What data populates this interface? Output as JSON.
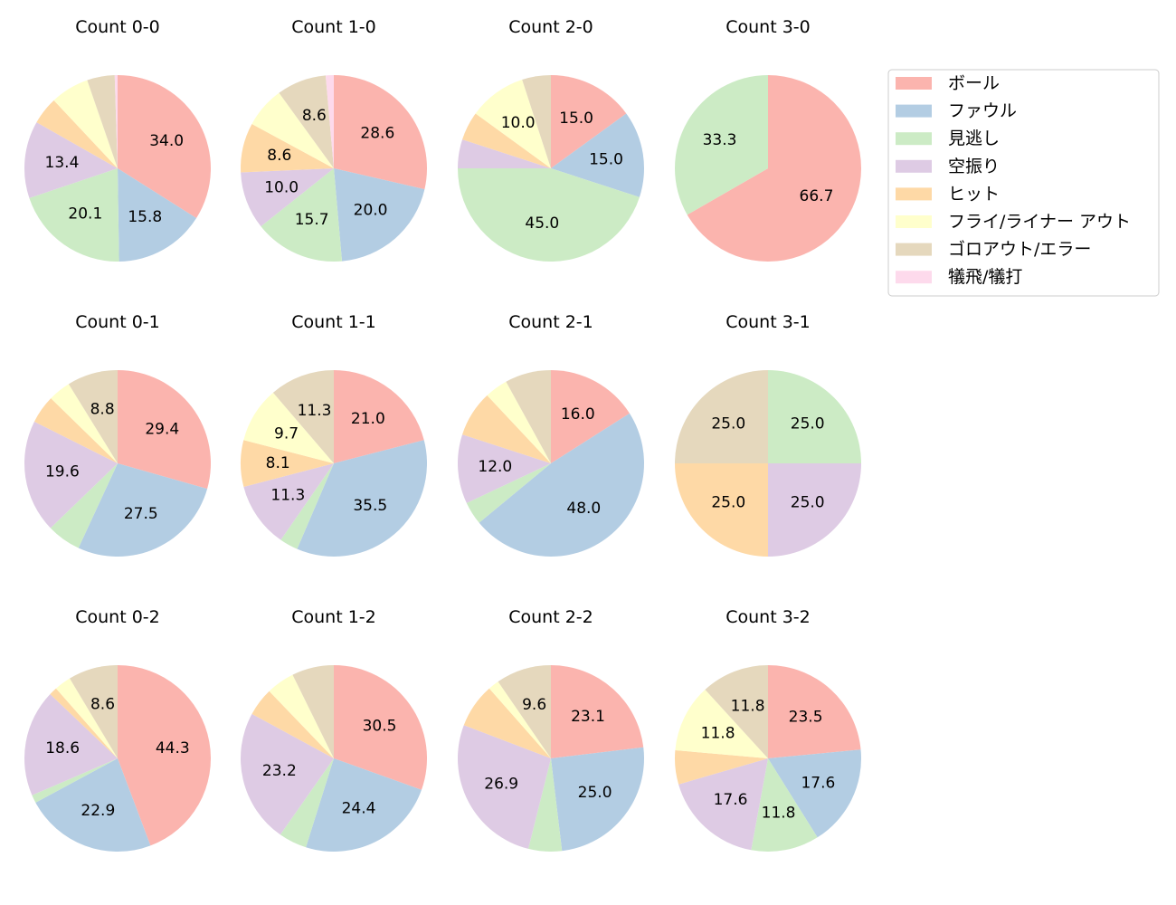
{
  "chart_data": {
    "type": "pie",
    "start_angle": "top",
    "direction": "clockwise",
    "label_threshold_percent": 8,
    "categories": [
      "ボール",
      "ファウル",
      "見逃し",
      "空振り",
      "ヒット",
      "フライ/ライナー アウト",
      "ゴロアウト/エラー",
      "犠飛/犠打"
    ],
    "colors": [
      "#fbb4ae",
      "#b3cde3",
      "#ccebc5",
      "#decbe4",
      "#fed9a6",
      "#ffffcc",
      "#e5d8bd",
      "#fddaec"
    ],
    "legend_position": "right",
    "charts": [
      {
        "title": "Count 0-0",
        "values": [
          34.0,
          15.8,
          20.1,
          13.4,
          4.8,
          6.7,
          4.8,
          0.5
        ]
      },
      {
        "title": "Count 1-0",
        "values": [
          28.6,
          20.0,
          15.7,
          10.0,
          8.6,
          7.1,
          8.6,
          1.4
        ]
      },
      {
        "title": "Count 2-0",
        "values": [
          15.0,
          15.0,
          45.0,
          5.0,
          5.0,
          10.0,
          5.0,
          0
        ]
      },
      {
        "title": "Count 3-0",
        "values": [
          66.7,
          0,
          33.3,
          0,
          0,
          0,
          0,
          0
        ]
      },
      {
        "title": "Count 0-1",
        "values": [
          29.4,
          27.5,
          5.9,
          19.6,
          4.9,
          3.9,
          8.8,
          0
        ]
      },
      {
        "title": "Count 1-1",
        "values": [
          21.0,
          35.5,
          3.2,
          11.3,
          8.1,
          9.7,
          11.3,
          0
        ]
      },
      {
        "title": "Count 2-1",
        "values": [
          16.0,
          48.0,
          4.0,
          12.0,
          8.0,
          4.0,
          8.0,
          0
        ]
      },
      {
        "title": "Count 3-1",
        "values": [
          0,
          0,
          25.0,
          25.0,
          25.0,
          0,
          25.0,
          0
        ]
      },
      {
        "title": "Count 0-2",
        "values": [
          44.3,
          22.9,
          1.4,
          18.6,
          1.4,
          2.9,
          8.6,
          0
        ]
      },
      {
        "title": "Count 1-2",
        "values": [
          30.5,
          24.4,
          4.9,
          23.2,
          4.9,
          4.9,
          7.3,
          0
        ]
      },
      {
        "title": "Count 2-2",
        "values": [
          23.1,
          25.0,
          5.8,
          26.9,
          7.7,
          1.9,
          9.6,
          0
        ]
      },
      {
        "title": "Count 3-2",
        "values": [
          23.5,
          17.6,
          11.8,
          17.6,
          5.9,
          11.8,
          11.8,
          0
        ]
      }
    ]
  }
}
